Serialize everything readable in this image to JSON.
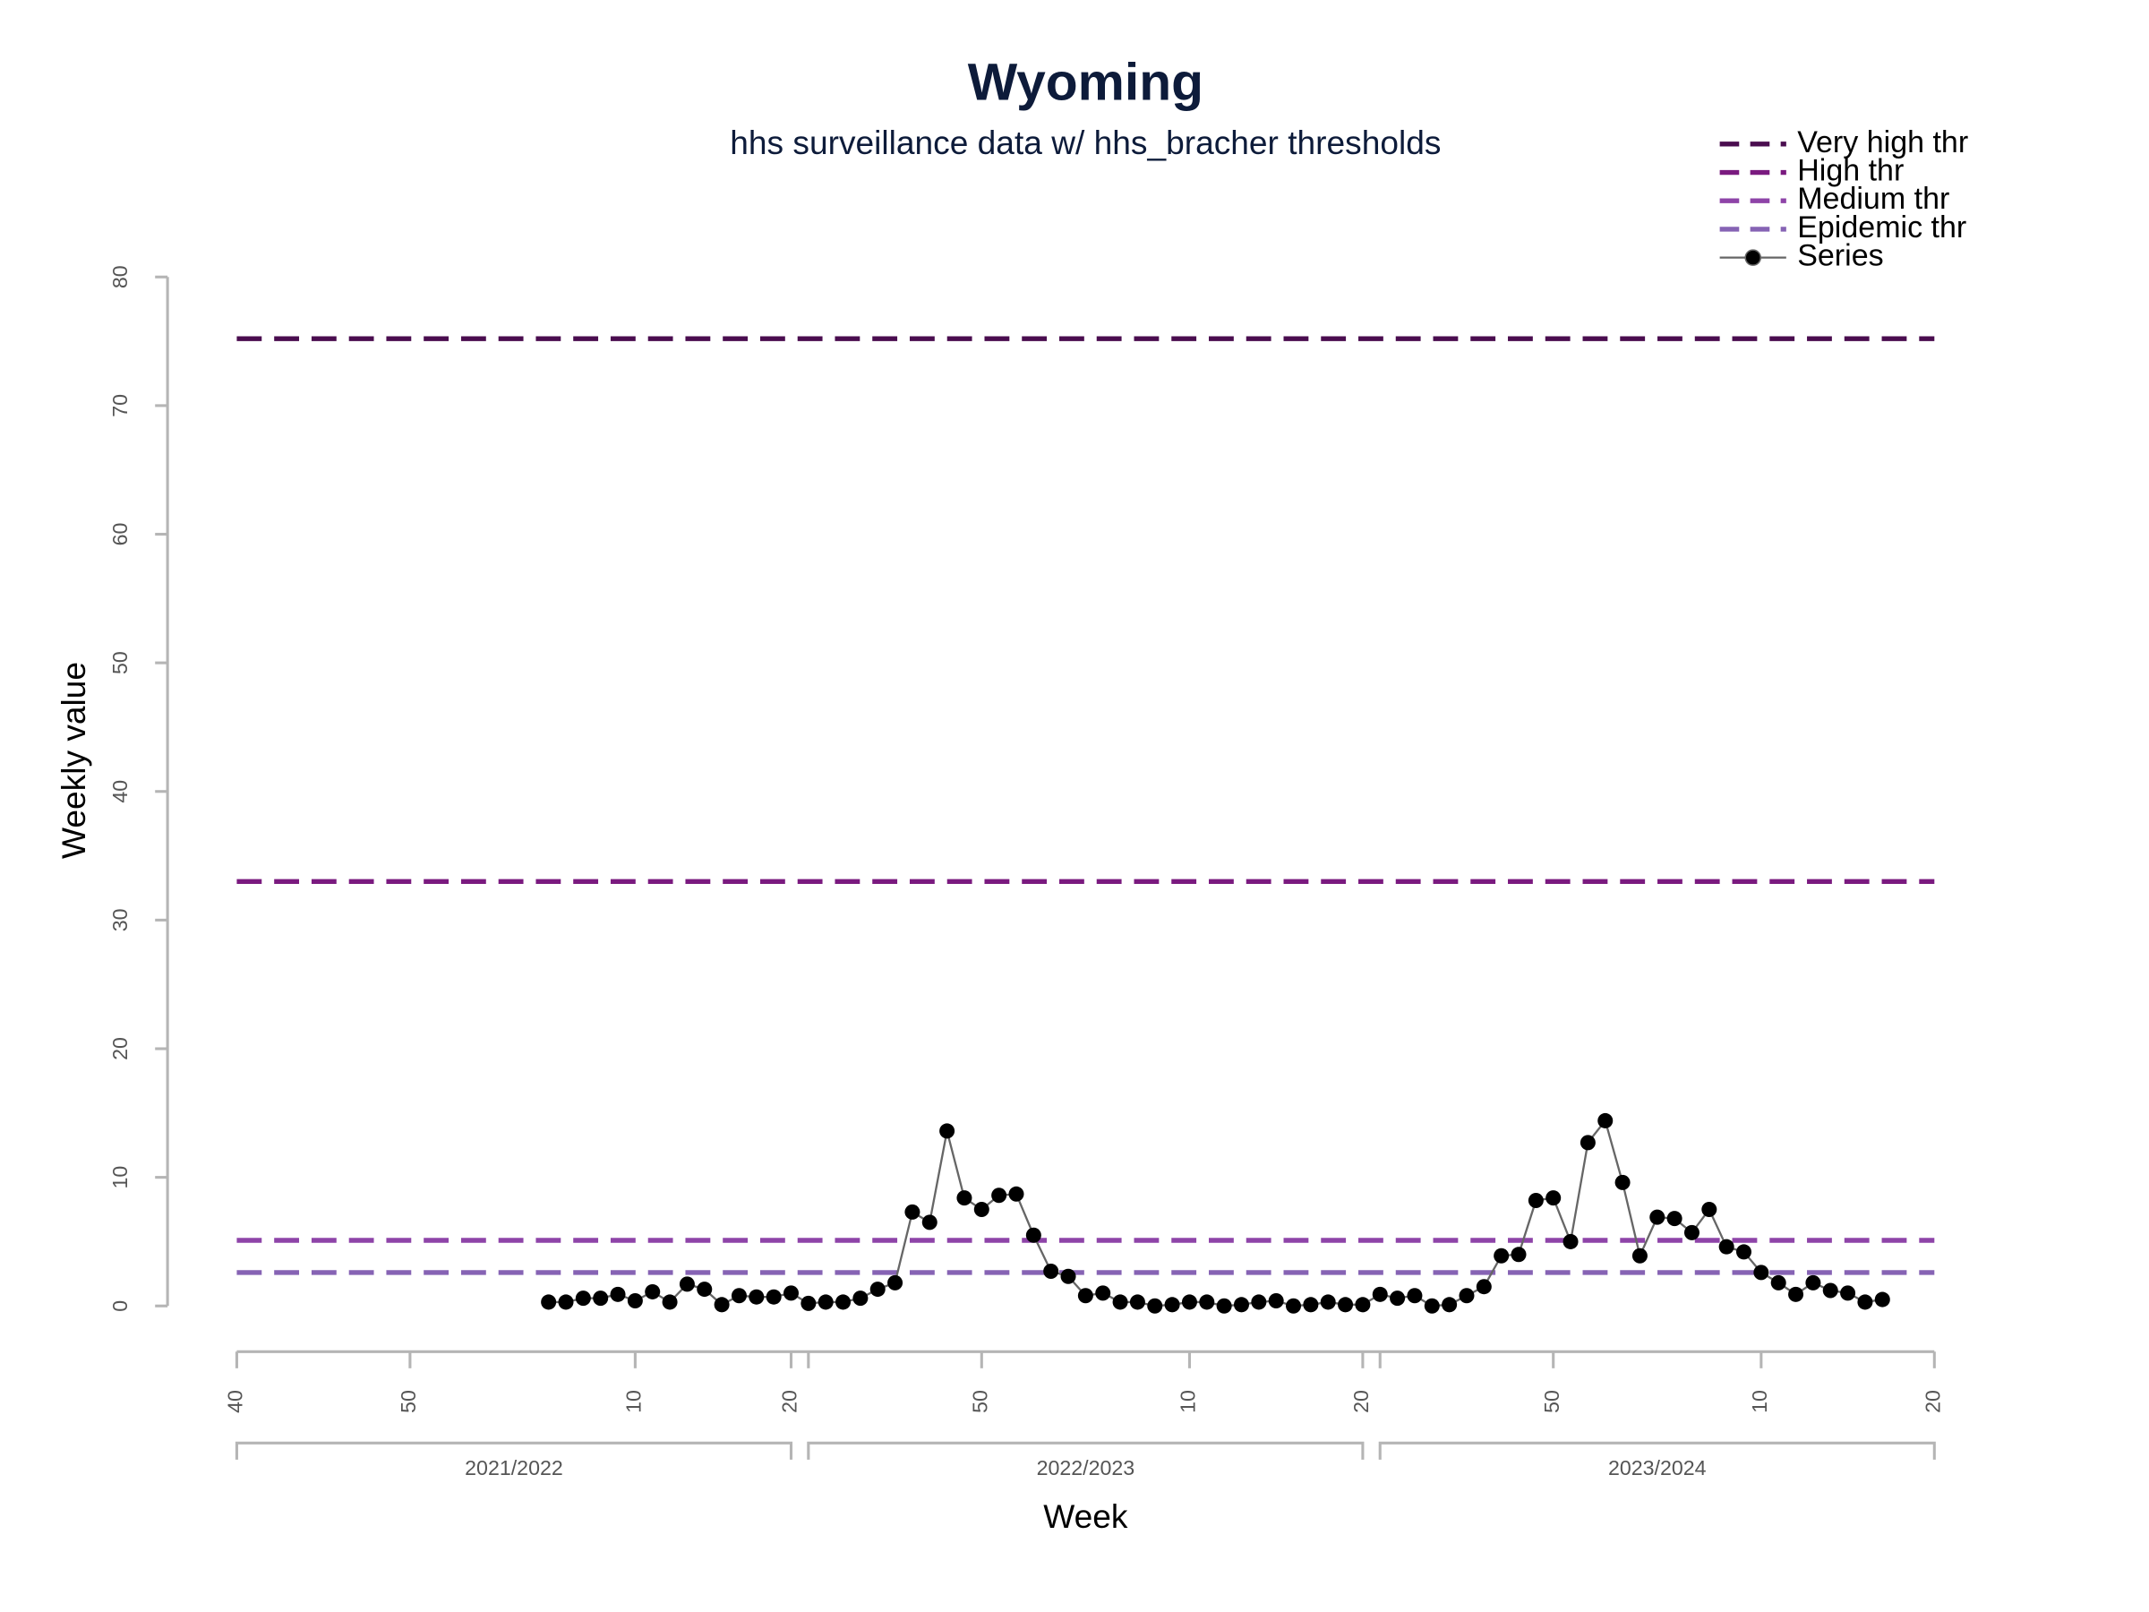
{
  "chart_data": {
    "type": "line",
    "title": "Wyoming",
    "subtitle": "hhs surveillance data w/ hhs_bracher thresholds",
    "x_label": "Week",
    "y_label": "Weekly value",
    "xlim": [
      0,
      98
    ],
    "xticks": [
      {
        "value": 0,
        "label": "40"
      },
      {
        "value": 10,
        "label": "50"
      },
      {
        "value": 23,
        "label": "10"
      },
      {
        "value": 32,
        "label": "20"
      },
      {
        "value": 33,
        "label": null
      },
      {
        "value": 43,
        "label": "50"
      },
      {
        "value": 55,
        "label": "10"
      },
      {
        "value": 65,
        "label": "20"
      },
      {
        "value": 66,
        "label": null
      },
      {
        "value": 76,
        "label": "50"
      },
      {
        "value": 88,
        "label": "10"
      },
      {
        "value": 98,
        "label": "20"
      }
    ],
    "ylim": [
      0,
      80
    ],
    "yticks": [
      0,
      10,
      20,
      30,
      40,
      50,
      60,
      70,
      80
    ],
    "seasons": [
      {
        "label": "2021/2022",
        "range": [
          0,
          32
        ]
      },
      {
        "label": "2022/2023",
        "range": [
          33,
          65
        ]
      },
      {
        "label": "2023/2024",
        "range": [
          66,
          98
        ]
      }
    ],
    "thresholds": [
      {
        "name": "Very high thr",
        "color": "#4a0d4f",
        "value": 75.2
      },
      {
        "name": "High thr",
        "color": "#7a1a7f",
        "value": 33.0
      },
      {
        "name": "Medium thr",
        "color": "#8e44a8",
        "value": 5.1
      },
      {
        "name": "Epidemic thr",
        "color": "#8663b4",
        "value": 2.6
      }
    ],
    "series": [
      {
        "name": "Series",
        "color": "#000000",
        "line_color": "#666666",
        "x": [
          18,
          19,
          20,
          21,
          22,
          23,
          24,
          25,
          26,
          27,
          28,
          29,
          30,
          31,
          32,
          33,
          34,
          35,
          36,
          37,
          38,
          39,
          40,
          41,
          42,
          43,
          44,
          45,
          46,
          47,
          48,
          49,
          50,
          51,
          52,
          53,
          54,
          55,
          56,
          57,
          58,
          59,
          60,
          61,
          62,
          63,
          64,
          65,
          66,
          67,
          68,
          69,
          70,
          71,
          72,
          73,
          74,
          75,
          76,
          77,
          78,
          79,
          80,
          81,
          82,
          83,
          84,
          85,
          86,
          87,
          88,
          89,
          90,
          91,
          92,
          93,
          94,
          95
        ],
        "values": [
          0.3,
          0.3,
          0.6,
          0.6,
          0.9,
          0.4,
          1.1,
          0.3,
          1.7,
          1.3,
          0.1,
          0.8,
          0.7,
          0.7,
          1.0,
          0.2,
          0.3,
          0.3,
          0.6,
          1.3,
          1.8,
          7.3,
          6.5,
          13.6,
          8.4,
          7.5,
          8.6,
          8.7,
          5.5,
          2.7,
          2.3,
          0.8,
          1.0,
          0.3,
          0.3,
          0.0,
          0.1,
          0.3,
          0.3,
          0.0,
          0.1,
          0.3,
          0.4,
          0.0,
          0.1,
          0.3,
          0.1,
          0.1,
          0.9,
          0.6,
          0.8,
          0.0,
          0.1,
          0.8,
          1.5,
          3.9,
          4.0,
          8.2,
          8.4,
          5.0,
          12.7,
          14.4,
          9.6,
          3.9,
          6.9,
          6.8,
          5.7,
          7.5,
          4.6,
          4.2,
          2.6,
          1.8,
          0.9,
          1.8,
          1.2,
          1.0,
          0.3,
          0.5
        ]
      }
    ],
    "legend": "topright"
  }
}
